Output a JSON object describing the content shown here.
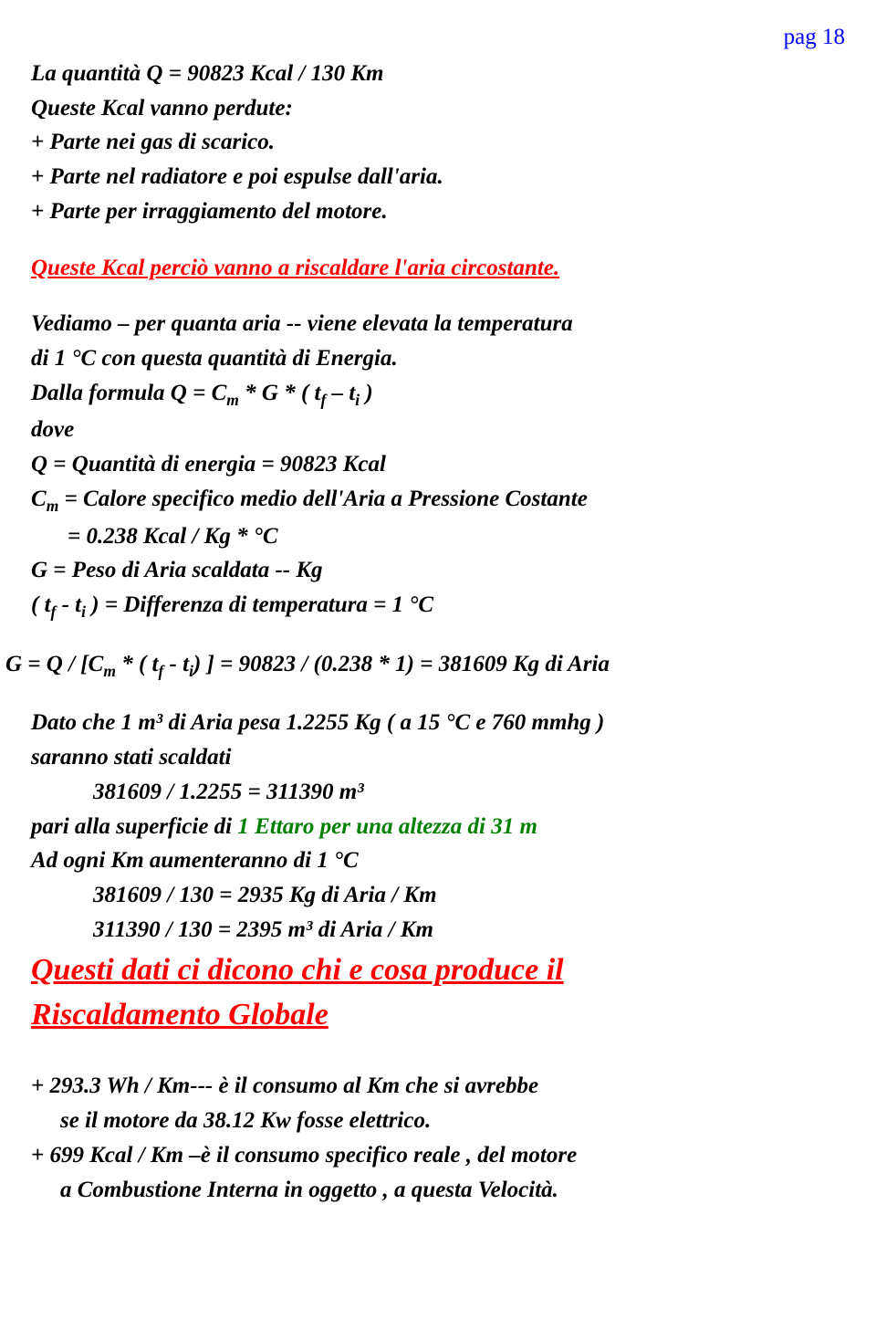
{
  "colors": {
    "text": "#000000",
    "red": "#ff0000",
    "blue": "#0000ff",
    "green": "#008000",
    "background": "#ffffff"
  },
  "typography": {
    "body_fontsize": 25,
    "large_fontsize": 34,
    "family": "Times New Roman",
    "italic": true,
    "bold": true
  },
  "page_number": "pag 18",
  "p1_line1": "La quantità  Q = 90823  Kcal / 130 Km",
  "p1_line2": "Queste Kcal vanno perdute:",
  "p1_line3": "+ Parte nei gas di scarico.",
  "p1_line4": "+ Parte nel radiatore e poi espulse dall'aria.",
  "p1_line5": "+ Parte per irraggiamento del motore.",
  "red1": " Queste Kcal perciò vanno a riscaldare l'aria circostante.",
  "p2_line1": "Vediamo – per quanta aria  -- viene elevata la temperatura",
  "p2_line2": "di   1 °C  con questa quantità di Energia.",
  "formula_line_part1": " Dalla formula  Q = C",
  "formula_line_part2": " * G * ( t",
  "formula_line_part3": " – t",
  "formula_line_part4": " )",
  "dove": " dove",
  "q_line": " Q = Quantità di energia = 90823 Kcal",
  "cm_line_part1": " C",
  "cm_line_part2": " = Calore specifico medio dell'Aria a Pressione Costante",
  "cm_value": "=  0.238 Kcal / Kg * °C",
  "g_line": " G = Peso di Aria scaldata -- Kg",
  "diff_part1": " ( t",
  "diff_part2": " - t",
  "diff_part3": " ) = Differenza di temperatura = 1 °C",
  "calc_part1": "G = Q / [C",
  "calc_part2": " * ( t",
  "calc_part3": " - t",
  "calc_part4": ") ] = 90823 / (0.238 * 1) = 381609 Kg di Aria",
  "p3_line1": "Dato che 1 m³ di Aria pesa 1.2255 Kg ( a 15 °C e 760 mmhg )",
  "p3_line2": "saranno stati scaldati",
  "p3_line3": "381609 /  1.2255 =   311390  m³",
  "p3_line4a": "pari alla superficie di  ",
  "p3_line4b": "1 Ettaro per una altezza di 31 m",
  "p3_line5": "Ad ogni Km aumenteranno di 1 °C",
  "p3_line6": "381609 / 130 = 2935 Kg di Aria / Km",
  "p3_line7": "311390 / 130 = 2395 m³ di Aria / Km",
  "red2_line1": " Questi dati ci dicono chi e cosa produce il",
  "red2_line2": "  Riscaldamento Globale",
  "p4_line1": " + 293.3 Wh / Km--- è il consumo  al Km che si avrebbe",
  "p4_line2": "se il  motore  da 38.12 Kw fosse elettrico.",
  "p4_line3": " + 699 Kcal / Km –è il consumo specifico reale , del motore",
  "p4_line4": "a Combustione Interna in oggetto , a questa Velocità.",
  "sub_m": "m",
  "sub_f": "f",
  "sub_i": "i"
}
